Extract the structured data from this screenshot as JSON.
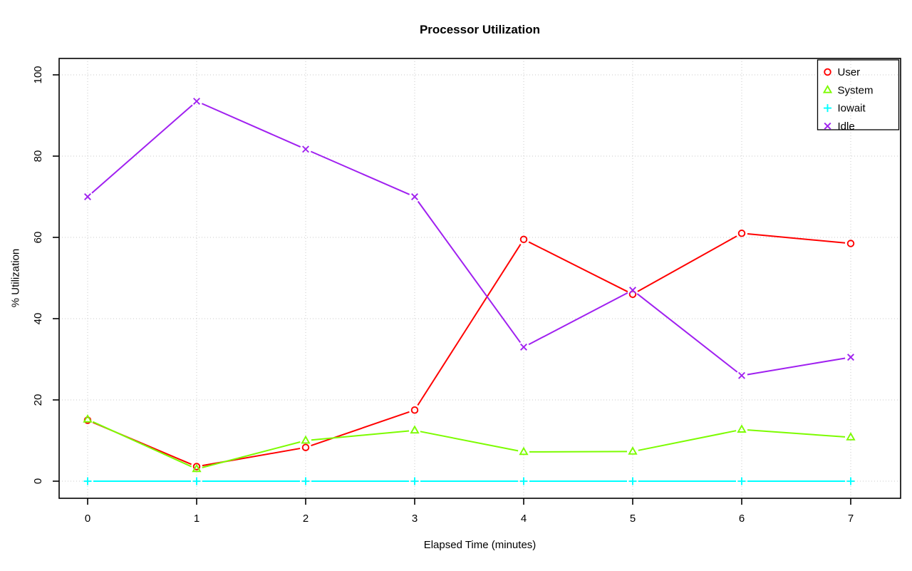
{
  "chart_data": {
    "type": "line",
    "title": "Processor Utilization",
    "xlabel": "Elapsed Time (minutes)",
    "ylabel": "% Utilization",
    "x": [
      0,
      1,
      2,
      3,
      4,
      5,
      6,
      7
    ],
    "xticks": [
      "0",
      "1",
      "2",
      "3",
      "4",
      "5",
      "6",
      "7"
    ],
    "yticks": [
      "0",
      "20",
      "40",
      "60",
      "80",
      "100"
    ],
    "ytick_values": [
      0,
      20,
      40,
      60,
      80,
      100
    ],
    "ylim": [
      0,
      100
    ],
    "grid": true,
    "grid_style": "dotted",
    "legend_position": "topright",
    "background": "#ffffff",
    "axis_color": "#000000",
    "grid_color": "#c8c8c8",
    "series": [
      {
        "name": "User",
        "color": "#ff0000",
        "marker": "circle",
        "values": [
          15,
          3.6,
          8.3,
          17.5,
          59.5,
          46,
          61,
          58.5
        ]
      },
      {
        "name": "System",
        "color": "#7cfc00",
        "marker": "triangle",
        "values": [
          15.2,
          3,
          10,
          12.5,
          7.2,
          7.3,
          12.7,
          10.8
        ]
      },
      {
        "name": "Iowait",
        "color": "#00ffff",
        "marker": "plus",
        "values": [
          0,
          0,
          0,
          0,
          0,
          0,
          0,
          0
        ]
      },
      {
        "name": "Idle",
        "color": "#a020f0",
        "marker": "x",
        "values": [
          70,
          93.5,
          81.7,
          70,
          33,
          47,
          26,
          30.5
        ]
      }
    ]
  }
}
